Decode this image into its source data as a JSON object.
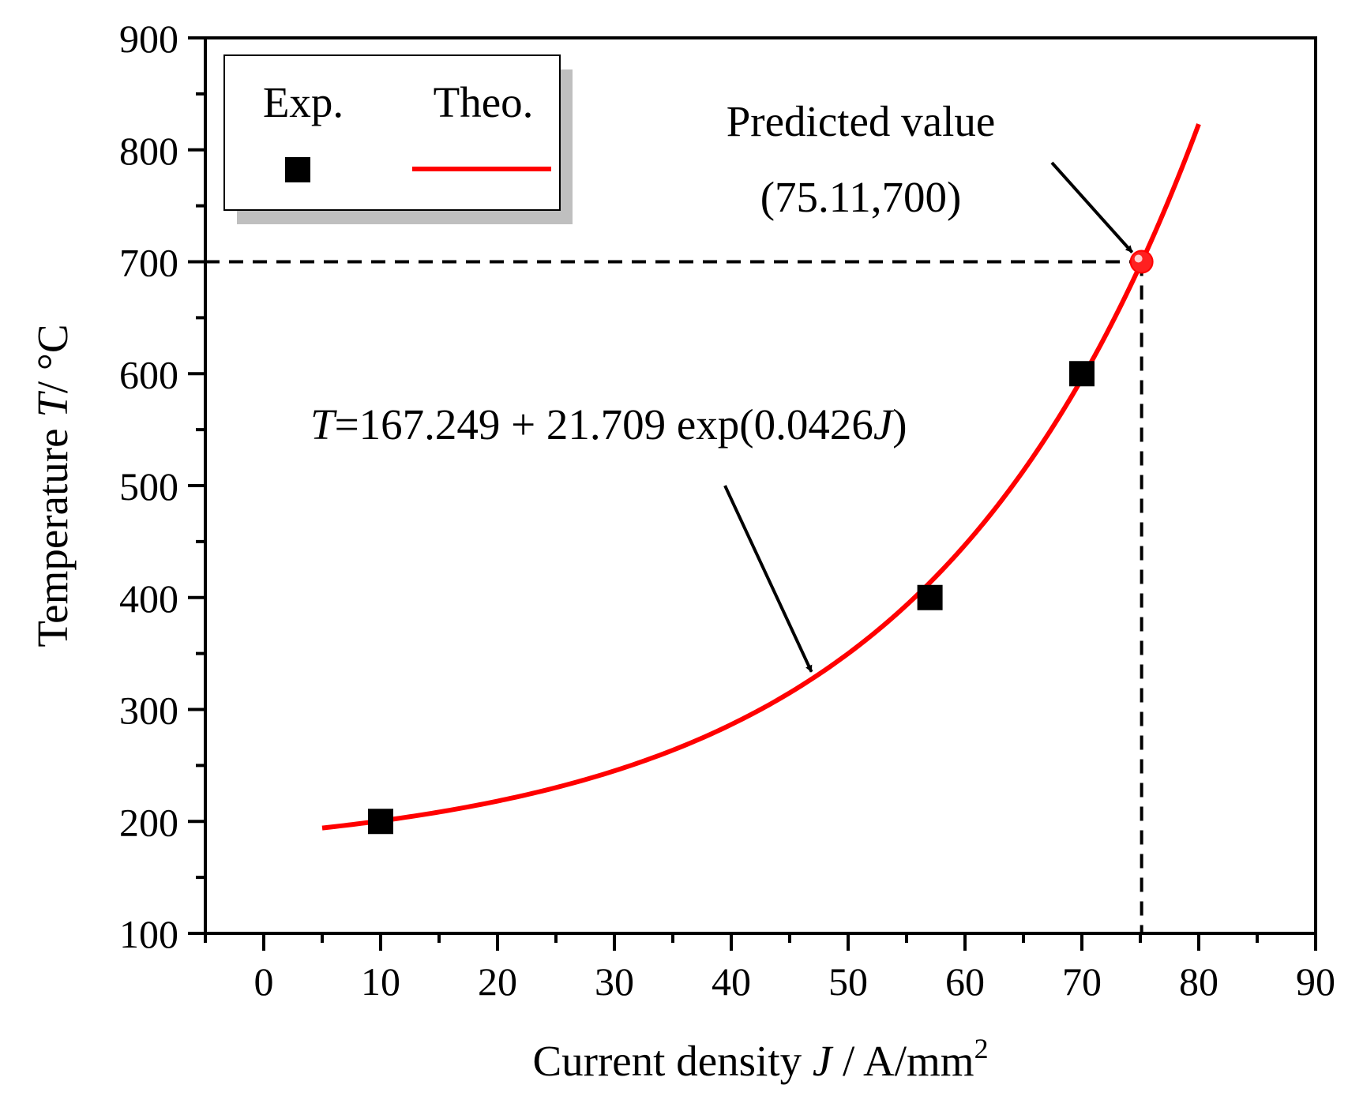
{
  "chart_data": {
    "type": "scatter",
    "xlabel": "Current density J / A/mm²",
    "xlabel_parts": {
      "prefix": "Current density ",
      "var": "J",
      "suffix": " / A/mm",
      "sup": "2"
    },
    "ylabel": "Temperature T/ °C",
    "ylabel_parts": {
      "prefix": "Temperature ",
      "var": "T",
      "suffix": "/ °C"
    },
    "xlim": [
      -5,
      90
    ],
    "ylim": [
      100,
      900
    ],
    "x_ticks": [
      0,
      10,
      20,
      30,
      40,
      50,
      60,
      70,
      80,
      90
    ],
    "y_ticks": [
      100,
      200,
      300,
      400,
      500,
      600,
      700,
      800,
      900
    ],
    "grid": false,
    "legend": {
      "position": "top-left",
      "entries": [
        {
          "label": "Exp.",
          "marker": "square",
          "color": "#000000"
        },
        {
          "label": "Theo.",
          "marker": "line",
          "color": "#ff0000"
        }
      ]
    },
    "series": [
      {
        "name": "Exp.",
        "type": "scatter",
        "color": "#000000",
        "points": [
          {
            "x": 10,
            "y": 200
          },
          {
            "x": 57,
            "y": 400
          },
          {
            "x": 70,
            "y": 600
          }
        ]
      },
      {
        "name": "Theo.",
        "type": "line",
        "color": "#ff0000",
        "model": {
          "a": 167.249,
          "b": 21.709,
          "c": 0.0426
        },
        "x_range": [
          5,
          80
        ]
      }
    ],
    "predicted_point": {
      "x": 75.11,
      "y": 700
    },
    "annotations": {
      "predicted_title": "Predicted value",
      "predicted_coords": "(75.11,700)",
      "equation": {
        "var_t": "T",
        "body": "=167.249 + 21.709 exp(0.0426",
        "var_j": "J",
        "close": ")"
      }
    }
  }
}
